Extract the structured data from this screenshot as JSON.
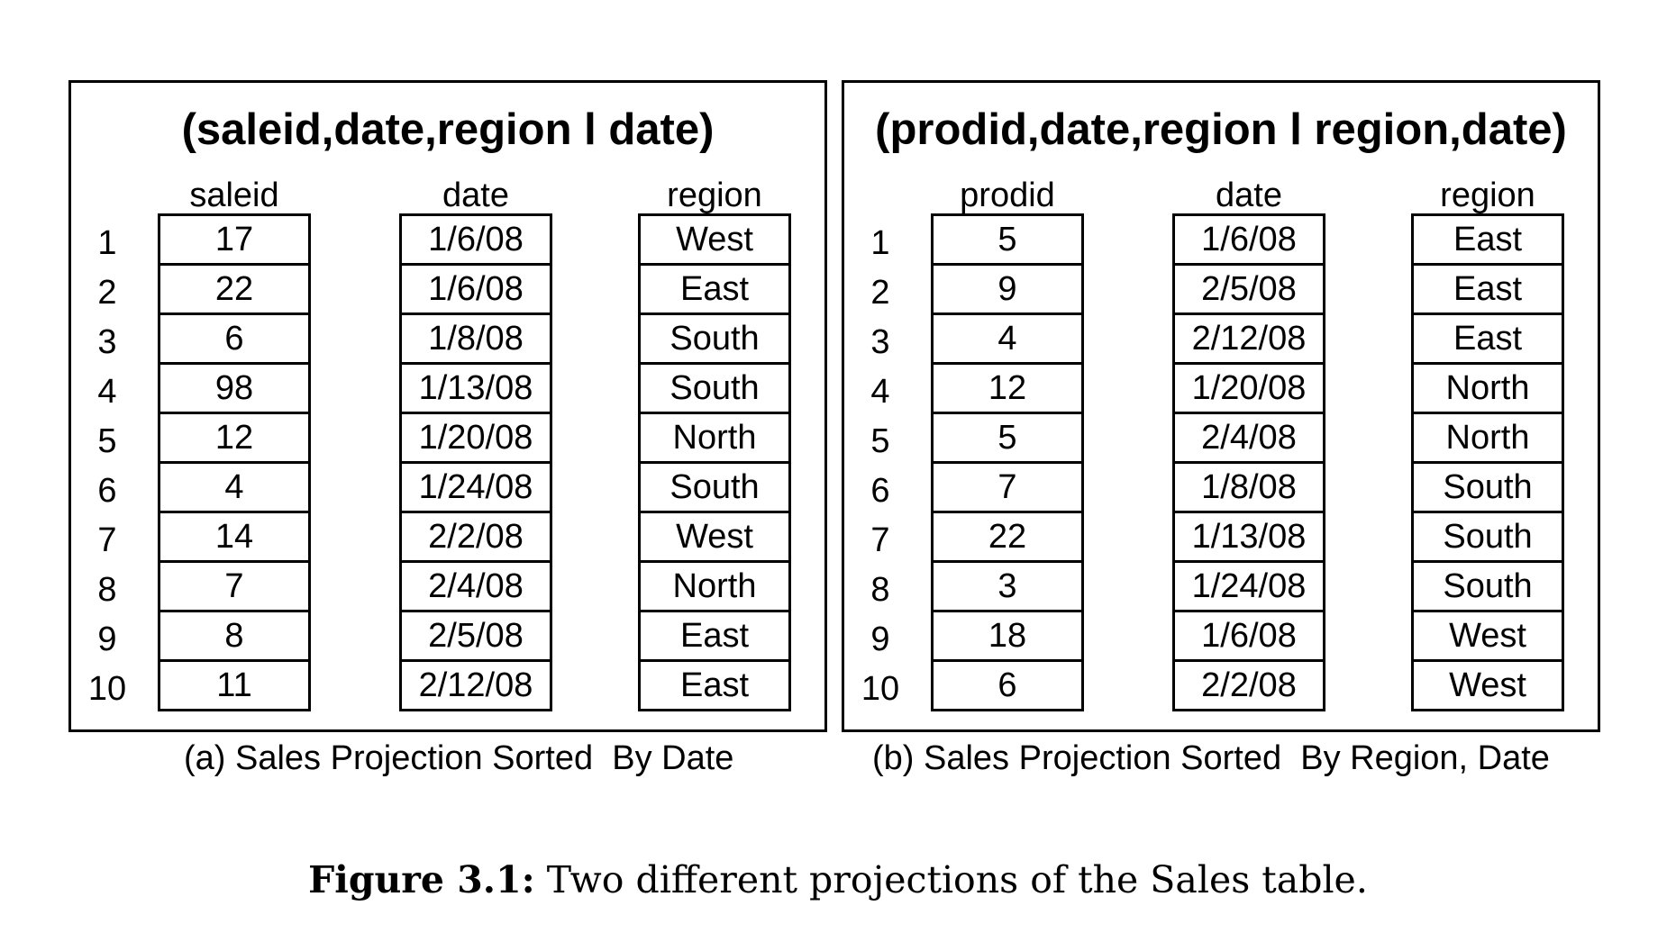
{
  "panel_a": {
    "title": "(saleid,date,region l date)",
    "headers": [
      "saleid",
      "date",
      "region"
    ],
    "row_numbers": [
      "1",
      "2",
      "3",
      "4",
      "5",
      "6",
      "7",
      "8",
      "9",
      "10"
    ],
    "columns": [
      [
        "17",
        "22",
        "6",
        "98",
        "12",
        "4",
        "14",
        "7",
        "8",
        "11"
      ],
      [
        "1/6/08",
        "1/6/08",
        "1/8/08",
        "1/13/08",
        "1/20/08",
        "1/24/08",
        "2/2/08",
        "2/4/08",
        "2/5/08",
        "2/12/08"
      ],
      [
        "West",
        "East",
        "South",
        "South",
        "North",
        "South",
        "West",
        "North",
        "East",
        "East"
      ]
    ],
    "caption": "(a) Sales Projection Sorted  By Date"
  },
  "panel_b": {
    "title": "(prodid,date,region l region,date)",
    "headers": [
      "prodid",
      "date",
      "region"
    ],
    "row_numbers": [
      "1",
      "2",
      "3",
      "4",
      "5",
      "6",
      "7",
      "8",
      "9",
      "10"
    ],
    "columns": [
      [
        "5",
        "9",
        "4",
        "12",
        "5",
        "7",
        "22",
        "3",
        "18",
        "6"
      ],
      [
        "1/6/08",
        "2/5/08",
        "2/12/08",
        "1/20/08",
        "2/4/08",
        "1/8/08",
        "1/13/08",
        "1/24/08",
        "1/6/08",
        "2/2/08"
      ],
      [
        "East",
        "East",
        "East",
        "North",
        "North",
        "South",
        "South",
        "South",
        "West",
        "West"
      ]
    ],
    "caption": "(b) Sales Projection Sorted  By Region, Date"
  },
  "figure_caption": {
    "label": "Figure 3.1:",
    "text": "Two different projections of the Sales table."
  }
}
